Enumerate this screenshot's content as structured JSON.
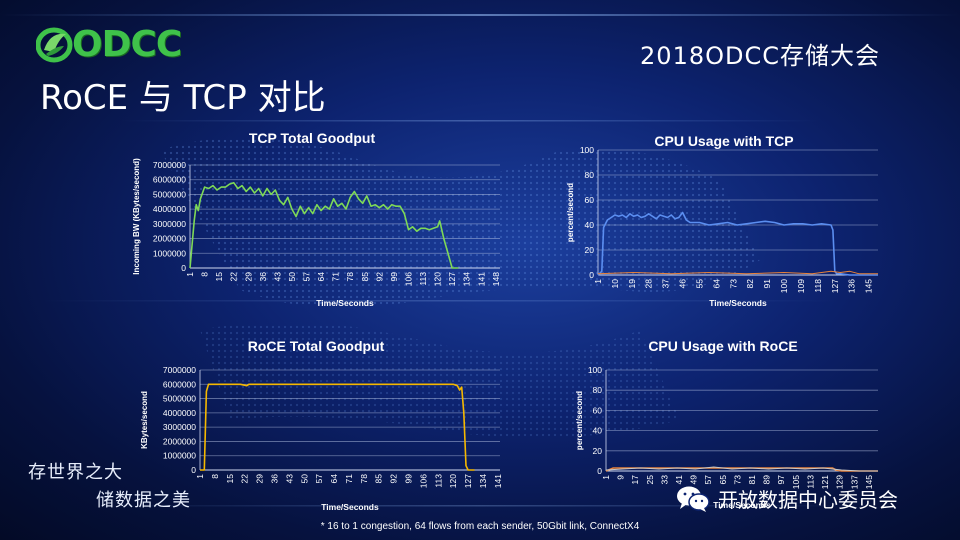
{
  "header": {
    "logo_text": "ODCC",
    "conference_title": "2018ODCC存储大会",
    "slide_title": "RoCE 与 TCP 对比"
  },
  "slogans": {
    "line1": "存世界之大",
    "line2": "储数据之美"
  },
  "wechat": {
    "label": "开放数据中心委员会",
    "icon": "wechat-icon"
  },
  "footnote": "* 16 to 1 congestion, 64 flows from each sender, 50Gbit link, ConnectX4",
  "colors": {
    "tcp_line": "#7ed957",
    "roce_line": "#f5b800",
    "cpu_tcp_line": "#5b8ef0",
    "cpu_roce_line": "#e8823a"
  },
  "chart_data": [
    {
      "type": "line",
      "title": "TCP Total Goodput",
      "xlabel": "Time/Seconds",
      "ylabel": "Incoming BW  (KBytes/second)",
      "xlim": [
        1,
        150
      ],
      "ylim": [
        0,
        7000000
      ],
      "yticks": [
        0,
        1000000,
        2000000,
        3000000,
        4000000,
        5000000,
        6000000,
        7000000
      ],
      "xticks": [
        1,
        8,
        15,
        22,
        29,
        36,
        43,
        50,
        57,
        64,
        71,
        78,
        85,
        92,
        99,
        106,
        113,
        120,
        127,
        134,
        141,
        148
      ],
      "grid": true,
      "series": [
        {
          "x": [
            1,
            3,
            4,
            5,
            6,
            8,
            10,
            12,
            14,
            16,
            18,
            20,
            22,
            24,
            26,
            28,
            30,
            32,
            34,
            36,
            38,
            40,
            42,
            44,
            46,
            48,
            50,
            52,
            54,
            56,
            58,
            60,
            62,
            64,
            66,
            68,
            70,
            72,
            74,
            76,
            78,
            80,
            82,
            84,
            86,
            88,
            90,
            92,
            94,
            96,
            98,
            100,
            102,
            104,
            106,
            108,
            110,
            112,
            114,
            116,
            118,
            120,
            121,
            123,
            125,
            127,
            128,
            130
          ],
          "values": [
            0,
            3200000,
            4300000,
            3900000,
            4700000,
            5500000,
            5400000,
            5600000,
            5300000,
            5500000,
            5500000,
            5700000,
            5800000,
            5400000,
            5600000,
            5200000,
            5500000,
            5100000,
            5400000,
            4900000,
            5400000,
            5000000,
            5300000,
            4600000,
            4300000,
            4800000,
            4000000,
            3500000,
            4200000,
            3700000,
            4100000,
            3700000,
            4300000,
            3900000,
            4200000,
            4000000,
            4700000,
            4200000,
            4400000,
            4000000,
            4800000,
            5200000,
            4700000,
            4400000,
            4900000,
            4200000,
            4300000,
            4100000,
            4300000,
            4000000,
            4300000,
            4200000,
            4200000,
            3700000,
            2600000,
            2800000,
            2500000,
            2700000,
            2700000,
            2600000,
            2700000,
            2800000,
            3200000,
            2000000,
            1000000,
            0,
            0,
            0
          ]
        }
      ]
    },
    {
      "type": "line",
      "title": "CPU Usage with TCP",
      "xlabel": "Time/Seconds",
      "ylabel": "percent/second",
      "xlim": [
        1,
        150
      ],
      "ylim": [
        0,
        100
      ],
      "yticks": [
        0,
        20,
        40,
        60,
        80,
        100
      ],
      "xticks": [
        1,
        10,
        19,
        28,
        37,
        46,
        55,
        64,
        73,
        82,
        91,
        100,
        109,
        118,
        127,
        136,
        145
      ],
      "grid": true,
      "series": [
        {
          "x": [
            1,
            3,
            4,
            6,
            8,
            10,
            12,
            14,
            16,
            18,
            20,
            22,
            24,
            26,
            28,
            30,
            32,
            34,
            36,
            38,
            40,
            42,
            44,
            46,
            48,
            50,
            55,
            60,
            65,
            70,
            75,
            80,
            85,
            90,
            95,
            100,
            105,
            110,
            115,
            120,
            125,
            126,
            127,
            128,
            130,
            135,
            140,
            145,
            150
          ],
          "values": [
            0,
            3,
            38,
            44,
            46,
            48,
            47,
            48,
            46,
            49,
            47,
            48,
            46,
            47,
            49,
            47,
            45,
            48,
            47,
            46,
            48,
            45,
            46,
            50,
            44,
            42,
            42,
            40,
            41,
            42,
            40,
            41,
            42,
            43,
            42,
            40,
            41,
            41,
            40,
            41,
            40,
            36,
            3,
            1,
            1,
            0,
            0,
            0,
            0
          ]
        },
        {
          "x": [
            1,
            20,
            40,
            60,
            80,
            100,
            115,
            120,
            125,
            130,
            135,
            140,
            145,
            150
          ],
          "values": [
            1,
            2,
            1,
            2,
            1,
            2,
            1,
            2,
            3,
            2,
            3,
            1,
            1,
            1
          ]
        }
      ]
    },
    {
      "type": "line",
      "title": "RoCE Total Goodput",
      "xlabel": "Time/Seconds",
      "ylabel": "KBytes/second",
      "xlim": [
        1,
        142
      ],
      "ylim": [
        0,
        7000000
      ],
      "yticks": [
        0,
        1000000,
        2000000,
        3000000,
        4000000,
        5000000,
        6000000,
        7000000
      ],
      "xticks": [
        1,
        8,
        15,
        22,
        29,
        36,
        43,
        50,
        57,
        64,
        71,
        78,
        85,
        92,
        99,
        106,
        113,
        120,
        127,
        134,
        141
      ],
      "grid": true,
      "series": [
        {
          "x": [
            1,
            3,
            4,
            5,
            10,
            20,
            23,
            24,
            25,
            30,
            40,
            50,
            60,
            70,
            80,
            90,
            100,
            110,
            120,
            122,
            123,
            124,
            125,
            126,
            127,
            128,
            130
          ],
          "values": [
            0,
            0,
            5500000,
            6000000,
            6000000,
            6000000,
            5900000,
            6000000,
            6000000,
            6000000,
            6000000,
            6000000,
            6000000,
            6000000,
            6000000,
            6000000,
            6000000,
            6000000,
            6000000,
            5900000,
            5600000,
            5800000,
            4000000,
            300000,
            0,
            0,
            0
          ]
        }
      ]
    },
    {
      "type": "line",
      "title": "CPU Usage with RoCE",
      "xlabel": "Time/Seconds",
      "ylabel": "percent/second",
      "xlim": [
        1,
        150
      ],
      "ylim": [
        0,
        100
      ],
      "yticks": [
        0,
        20,
        40,
        60,
        80,
        100
      ],
      "xticks": [
        1,
        9,
        17,
        25,
        33,
        41,
        49,
        57,
        65,
        73,
        81,
        89,
        97,
        105,
        113,
        121,
        129,
        137,
        145
      ],
      "grid": true,
      "series": [
        {
          "x": [
            1,
            5,
            10,
            20,
            30,
            40,
            50,
            60,
            70,
            80,
            90,
            100,
            110,
            120,
            125,
            127,
            130,
            140,
            150
          ],
          "values": [
            0,
            3,
            3,
            3,
            3,
            3,
            3,
            3,
            3,
            3,
            3,
            3,
            3,
            3,
            3,
            1,
            0,
            0,
            0
          ]
        },
        {
          "x": [
            1,
            10,
            20,
            30,
            40,
            50,
            60,
            70,
            80,
            90,
            100,
            110,
            120,
            125,
            130,
            140,
            150
          ],
          "values": [
            1,
            2,
            3,
            2,
            3,
            2,
            4,
            2,
            3,
            2,
            3,
            2,
            3,
            2,
            1,
            0,
            0
          ]
        }
      ]
    }
  ]
}
